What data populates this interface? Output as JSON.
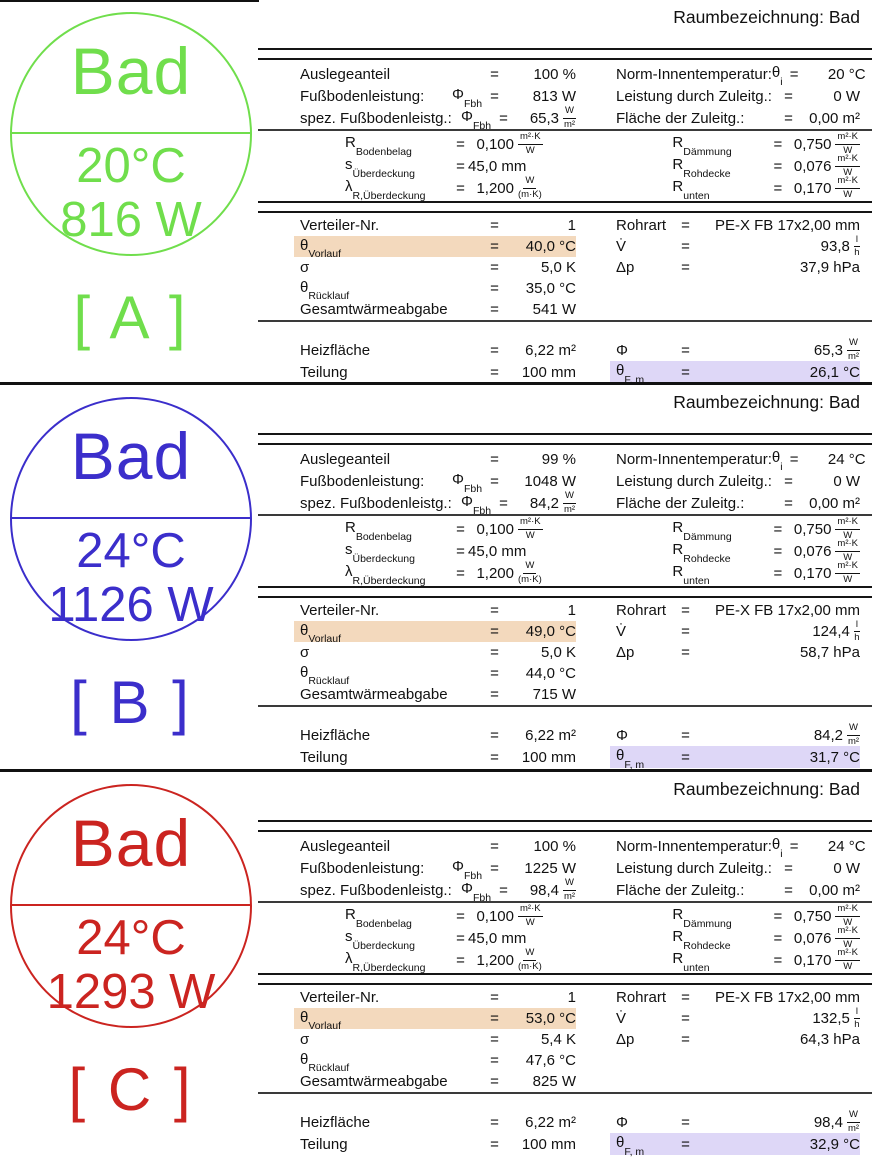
{
  "colors": {
    "section_a": "#70de4c",
    "section_b": "#3b2ecb",
    "section_c": "#cb2420",
    "vorlauf_highlight": "#f3d9bd",
    "theta_fm_highlight": "#ded7f7"
  },
  "labels": {
    "eq": "=",
    "raumbezeichnung": "Raumbezeichnung: Bad",
    "auslegeanteil": "Auslegeanteil",
    "fussbodenleistung": "Fußbodenleistung:",
    "spez_fussbodenleistg": "spez. Fußbodenleistg.:",
    "phi_sym": "Φ",
    "sub_fbh": "Fbh",
    "norm_innentemp": "Norm-Innentemperatur:",
    "theta_sym": "θ",
    "sub_i": "i",
    "leistung_zuleitg": "Leistung durch Zuleitg.:",
    "flaeche_zuleitg": "Fläche der Zuleitg.:",
    "r_sym": "R",
    "sub_bodenbelag": "Bodenbelag",
    "s_sym": "s",
    "sub_ueberdeckung": "Überdeckung",
    "lambda_sym": "λ",
    "sub_r_ueberdeckung": "R,Überdeckung",
    "sub_daemmung": "Dämmung",
    "sub_rohdecke": "Rohdecke",
    "sub_unten": "unten",
    "verteiler_nr": "Verteiler-Nr.",
    "sub_vorlauf": "Vorlauf",
    "sigma_sym": "σ",
    "sub_ruecklauf": "Rücklauf",
    "gesamtwaermeabgabe": "Gesamtwärmeabgabe",
    "rohrart": "Rohrart",
    "vdot_sym": "V̇",
    "delta_p_sym": "Δp",
    "heizflaeche": "Heizfläche",
    "teilung": "Teilung",
    "sub_fm": "F, m"
  },
  "units": {
    "m2kw_num": "m²·K",
    "m2kw_den": "W",
    "wm2_num": "W",
    "wm2_den": "m²",
    "wmk_num": "W",
    "wmk_den": "(m·K)",
    "lh_num": "l",
    "lh_den": "h"
  },
  "sections": [
    {
      "name": "A",
      "tag": "[ A ]",
      "circle": {
        "room": "Bad",
        "temp": "20°C",
        "power": "816 W"
      },
      "auslegeanteil": "100 %",
      "fbh_power": "813 W",
      "fbh_spec": "65,3",
      "norm_innentemp": "20 °C",
      "zuleitung_leistung": "0 W",
      "zuleitung_flaeche": "0,00 m²",
      "r_bodenbelag": "0,100",
      "s_ueberdeckung": "45,0 mm",
      "lambda_ueberdeckung": "1,200",
      "r_daemmung": "0,750",
      "r_rohdecke": "0,076",
      "r_unten": "0,170",
      "verteiler_nr": "1",
      "vorlauf": "40,0 °C",
      "sigma": "5,0 K",
      "ruecklauf": "35,0 °C",
      "gesamtwaermeabgabe": "541 W",
      "rohrart": "PE-X FB 17x2,00 mm",
      "volumenstrom": "93,8",
      "druckverlust": "37,9 hPa",
      "heizflaeche": "6,22 m²",
      "teilung": "100 mm",
      "phi": "65,3",
      "theta_fm": "26,1 °C"
    },
    {
      "name": "B",
      "tag": "[ B ]",
      "circle": {
        "room": "Bad",
        "temp": "24°C",
        "power": "1126 W"
      },
      "auslegeanteil": "99 %",
      "fbh_power": "1048 W",
      "fbh_spec": "84,2",
      "norm_innentemp": "24 °C",
      "zuleitung_leistung": "0 W",
      "zuleitung_flaeche": "0,00 m²",
      "r_bodenbelag": "0,100",
      "s_ueberdeckung": "45,0 mm",
      "lambda_ueberdeckung": "1,200",
      "r_daemmung": "0,750",
      "r_rohdecke": "0,076",
      "r_unten": "0,170",
      "verteiler_nr": "1",
      "vorlauf": "49,0 °C",
      "sigma": "5,0 K",
      "ruecklauf": "44,0 °C",
      "gesamtwaermeabgabe": "715 W",
      "rohrart": "PE-X FB 17x2,00 mm",
      "volumenstrom": "124,4",
      "druckverlust": "58,7 hPa",
      "heizflaeche": "6,22 m²",
      "teilung": "100 mm",
      "phi": "84,2",
      "theta_fm": "31,7 °C"
    },
    {
      "name": "C",
      "tag": "[ C ]",
      "circle": {
        "room": "Bad",
        "temp": "24°C",
        "power": "1293 W"
      },
      "auslegeanteil": "100 %",
      "fbh_power": "1225 W",
      "fbh_spec": "98,4",
      "norm_innentemp": "24 °C",
      "zuleitung_leistung": "0 W",
      "zuleitung_flaeche": "0,00 m²",
      "r_bodenbelag": "0,100",
      "s_ueberdeckung": "45,0 mm",
      "lambda_ueberdeckung": "1,200",
      "r_daemmung": "0,750",
      "r_rohdecke": "0,076",
      "r_unten": "0,170",
      "verteiler_nr": "1",
      "vorlauf": "53,0 °C",
      "sigma": "5,4 K",
      "ruecklauf": "47,6 °C",
      "gesamtwaermeabgabe": "825 W",
      "rohrart": "PE-X FB 17x2,00 mm",
      "volumenstrom": "132,5",
      "druckverlust": "64,3 hPa",
      "heizflaeche": "6,22 m²",
      "teilung": "100 mm",
      "phi": "98,4",
      "theta_fm": "32,9 °C"
    }
  ]
}
